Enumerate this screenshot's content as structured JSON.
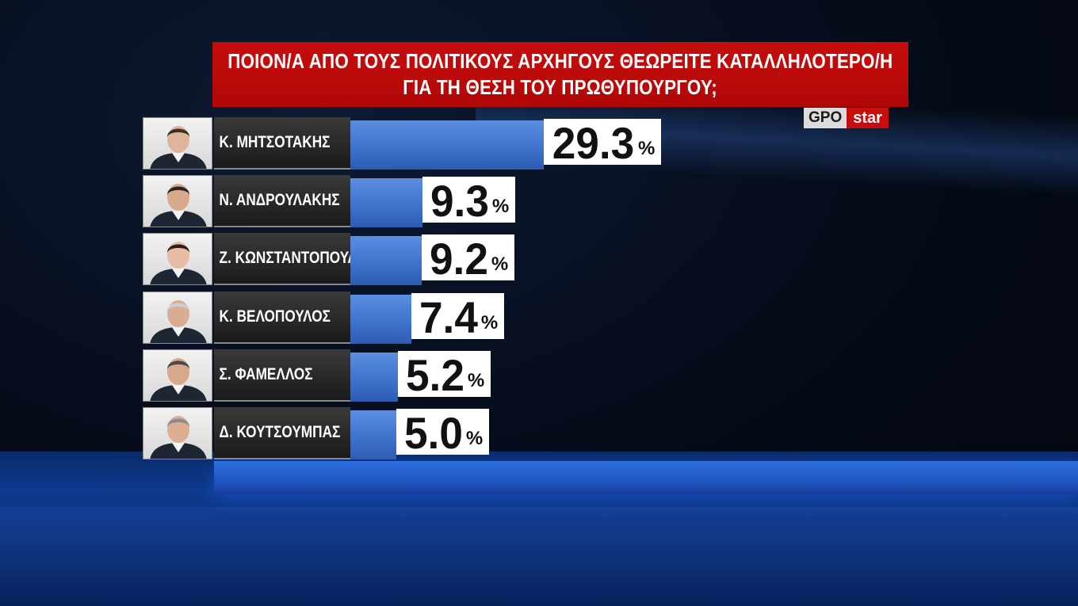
{
  "header": {
    "line1": "ΠΟΙΟΝ/Α ΑΠΟ ΤΟΥΣ ΠΟΛΙΤΙΚΟΥΣ ΑΡΧΗΓΟΥΣ ΘΕΩΡΕΙΤΕ ΚΑΤΑΛΛΗΛΟΤΕΡΟ/Η",
    "line2": "ΓΙΑ ΤΗ ΘΕΣΗ ΤΟΥ ΠΡΩΘΥΠΟΥΡΓΟΥ;"
  },
  "logo": {
    "part1": "GPO",
    "part2": "star"
  },
  "colors": {
    "header_red": "#c60d0d",
    "bar_blue": "#4a7fd6",
    "name_bg": "#2a2a2a"
  },
  "chart_data": {
    "type": "bar",
    "orientation": "horizontal",
    "title": "ΠΟΙΟΝ/Α ΑΠΟ ΤΟΥΣ ΠΟΛΙΤΙΚΟΥΣ ΑΡΧΗΓΟΥΣ ΘΕΩΡΕΙΤΕ ΚΑΤΑΛΛΗΛΟΤΕΡΟ/Η ΓΙΑ ΤΗ ΘΕΣΗ ΤΟΥ ΠΡΩΘΥΠΟΥΡΓΟΥ;",
    "unit": "%",
    "categories": [
      "Κ. ΜΗΤΣΟΤΑΚΗΣ",
      "Ν. ΑΝΔΡΟΥΛΑΚΗΣ",
      "Ζ. ΚΩΝΣΤΑΝΤΟΠΟΥΛΟΥ",
      "Κ. ΒΕΛΟΠΟΥΛΟΣ",
      "Σ. ΦΑΜΕΛΛΟΣ",
      "Δ. ΚΟΥΤΣΟΥΜΠΑΣ"
    ],
    "values": [
      29.3,
      9.3,
      9.2,
      7.4,
      5.2,
      5.0
    ],
    "labels": [
      "29.3",
      "9.3",
      "9.2",
      "7.4",
      "5.2",
      "5.0"
    ],
    "photo_icons": [
      "person-photo",
      "person-photo",
      "person-photo",
      "person-photo",
      "person-photo",
      "person-photo"
    ]
  }
}
